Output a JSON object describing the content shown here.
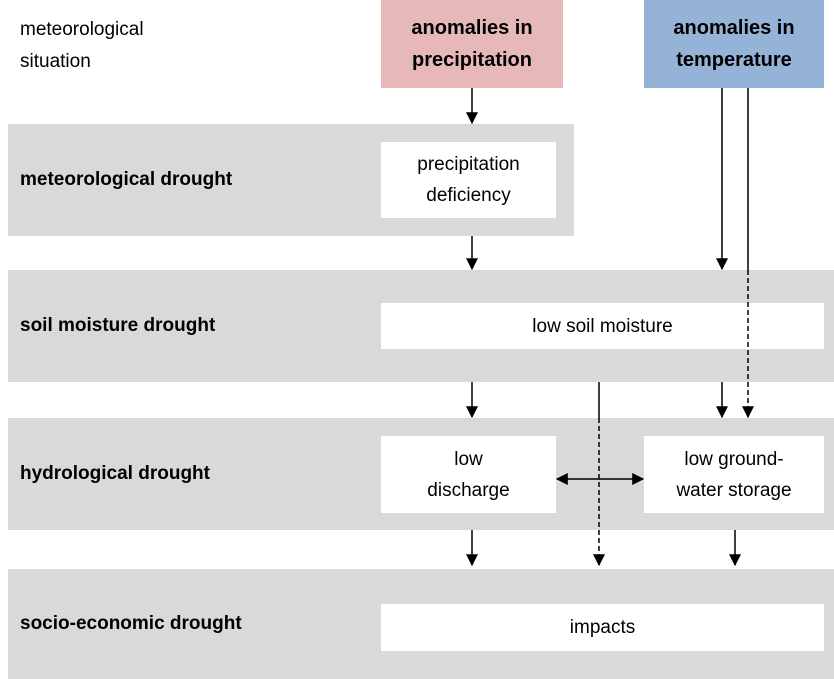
{
  "situation": {
    "label": [
      "meteorological",
      "situation"
    ],
    "inputs": [
      {
        "label": [
          "anomalies in",
          "precipitation"
        ]
      },
      {
        "label": [
          "anomalies in",
          "temperature"
        ]
      }
    ]
  },
  "levels": [
    {
      "label": "meteorological drought",
      "boxes": [
        {
          "label": [
            "precipitation",
            "deficiency"
          ]
        }
      ]
    },
    {
      "label": "soil moisture drought",
      "boxes": [
        {
          "label": [
            "low soil moisture"
          ]
        }
      ]
    },
    {
      "label": "hydrological drought",
      "boxes": [
        {
          "label": [
            "low",
            "discharge"
          ]
        },
        {
          "label": [
            "low ground-",
            "water storage"
          ]
        }
      ]
    },
    {
      "label": "socio-economic drought",
      "boxes": [
        {
          "label": [
            "impacts"
          ]
        }
      ]
    }
  ]
}
